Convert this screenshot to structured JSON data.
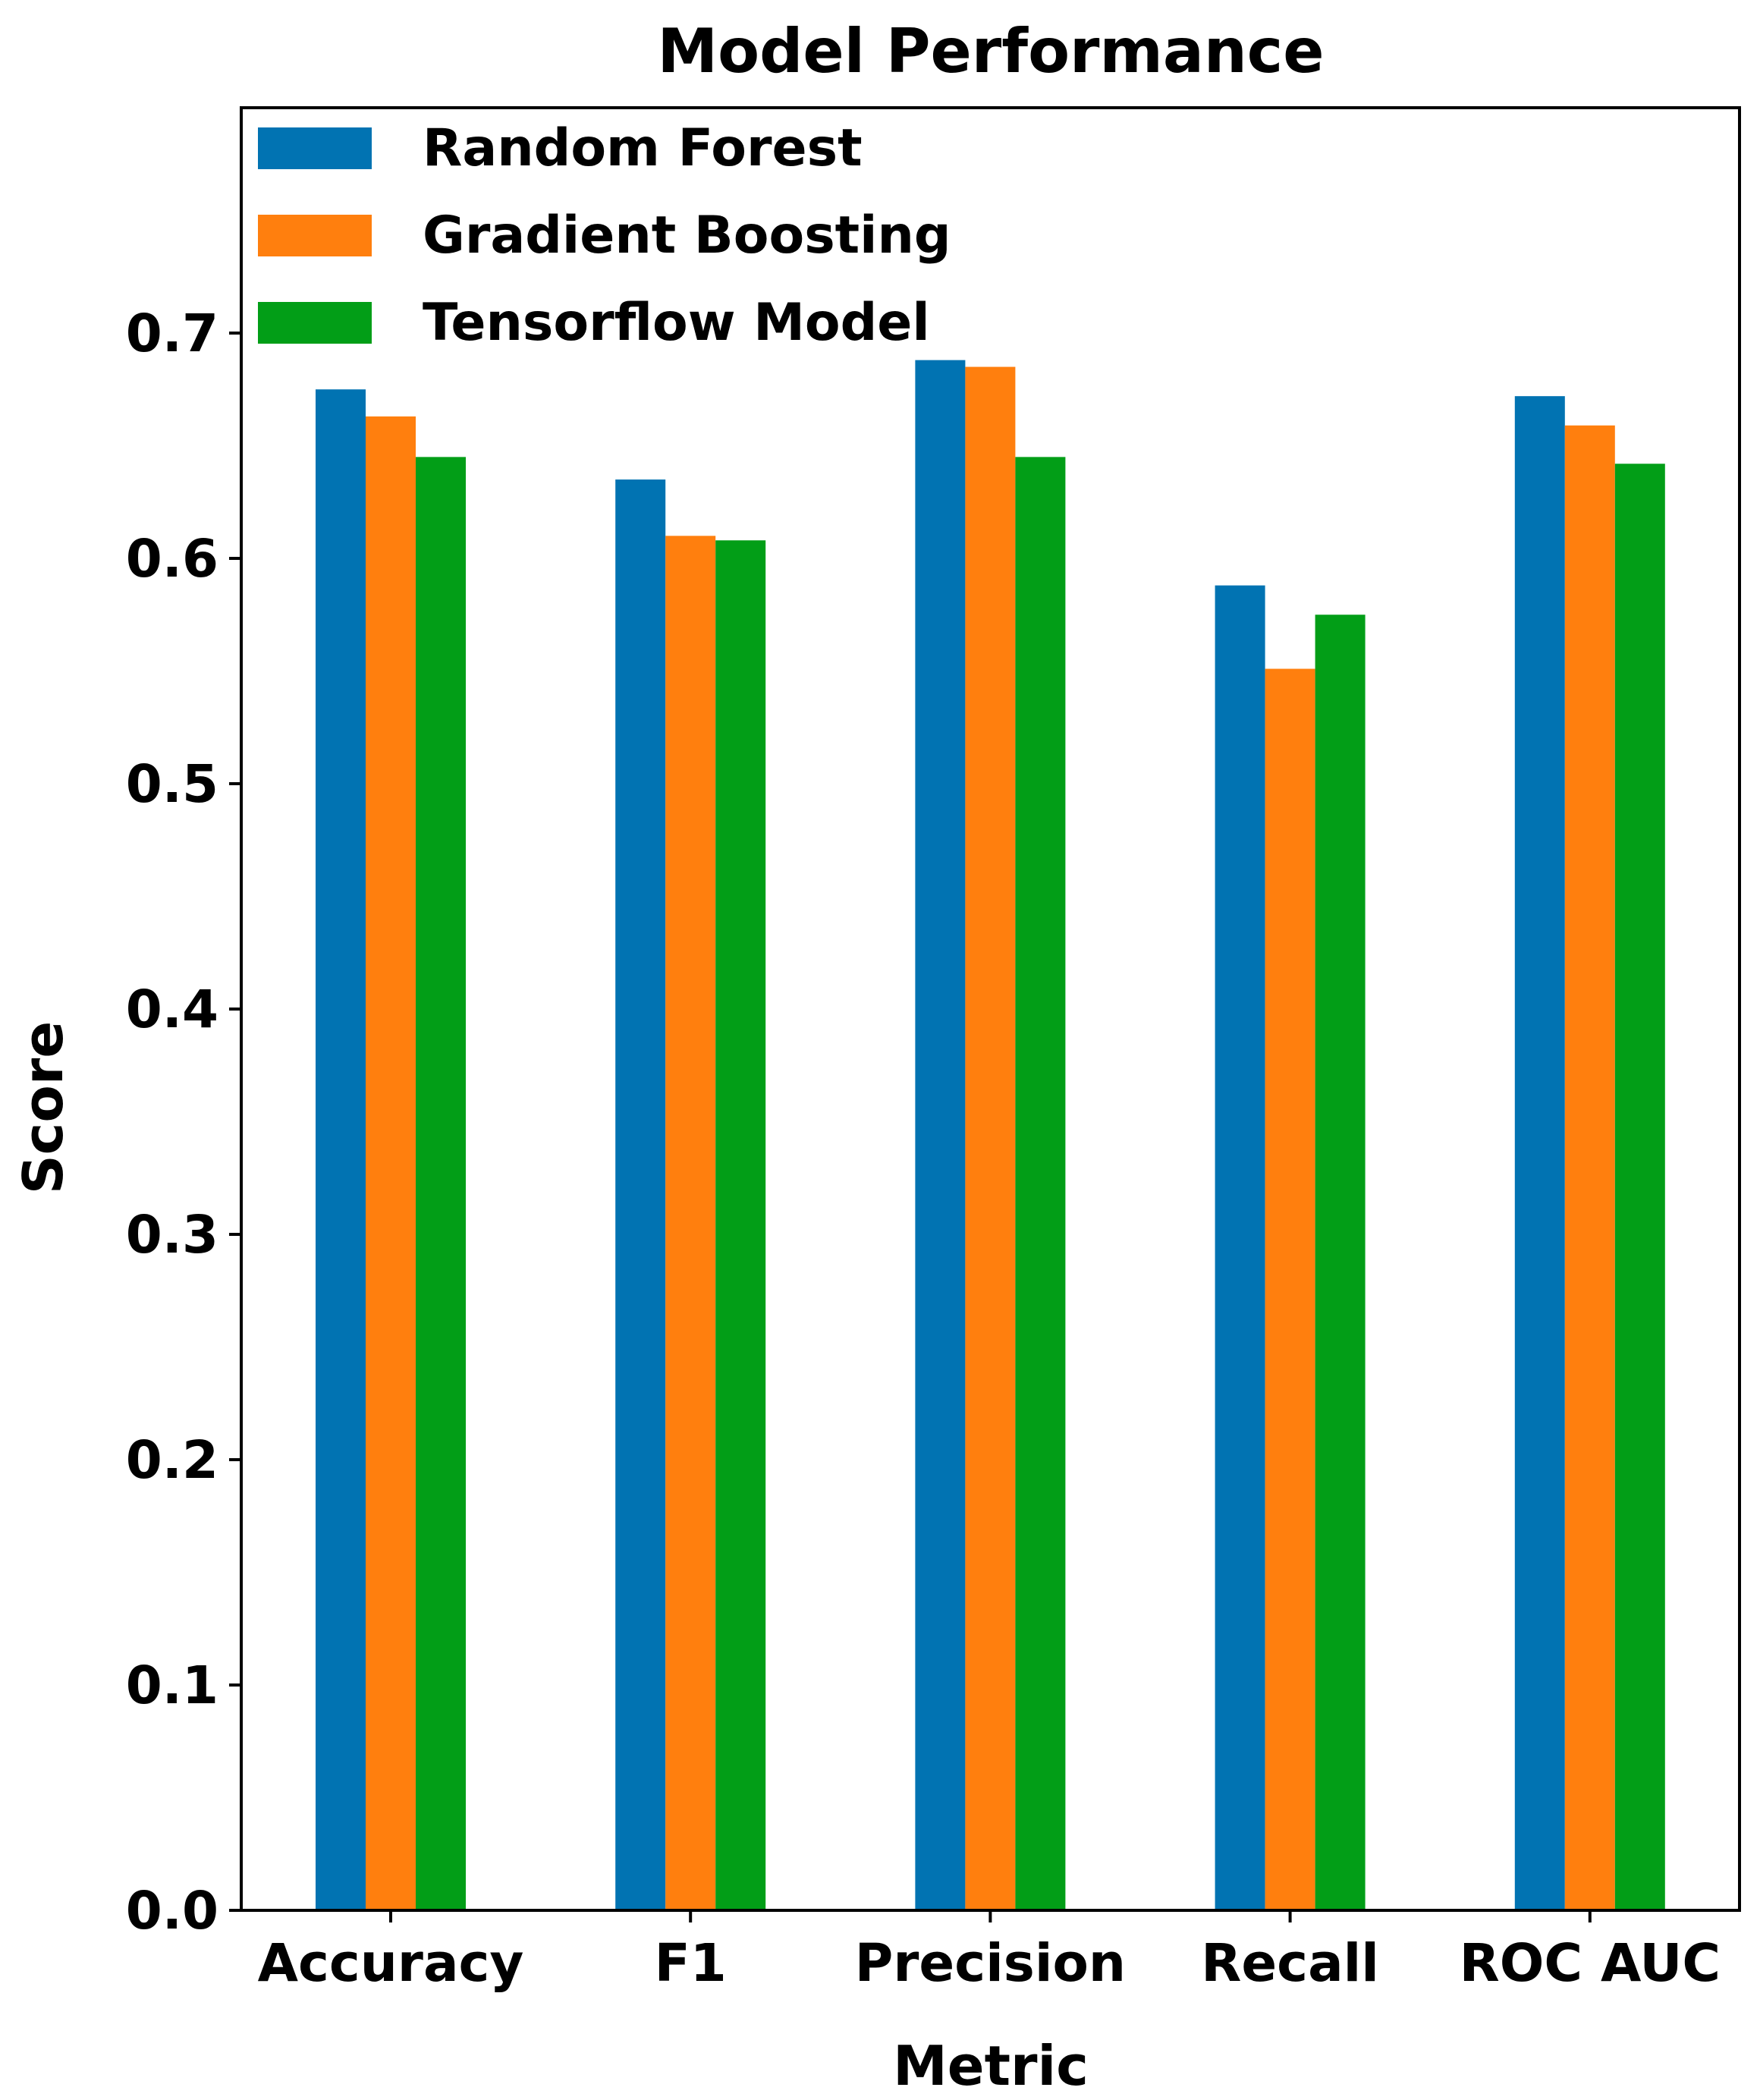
{
  "chart_data": {
    "type": "bar",
    "title": "Model Performance",
    "xlabel": "Metric",
    "ylabel": "Score",
    "ylim": [
      0,
      0.8
    ],
    "yticks": [
      "0.0",
      "0.1",
      "0.2",
      "0.3",
      "0.4",
      "0.5",
      "0.6",
      "0.7"
    ],
    "ytick_values": [
      0.0,
      0.1,
      0.2,
      0.3,
      0.4,
      0.5,
      0.6,
      0.7
    ],
    "grid": false,
    "legend_position": "top-left",
    "categories": [
      "Accuracy",
      "F1",
      "Precision",
      "Recall",
      "ROC AUC"
    ],
    "series": [
      {
        "name": "Random Forest",
        "color": "#0173b2",
        "values": [
          0.675,
          0.635,
          0.688,
          0.588,
          0.672
        ]
      },
      {
        "name": "Gradient Boosting",
        "color": "#ff7f0e",
        "values": [
          0.663,
          0.61,
          0.685,
          0.551,
          0.659
        ]
      },
      {
        "name": "Tensorflow Model",
        "color": "#029e17",
        "values": [
          0.645,
          0.608,
          0.645,
          0.575,
          0.642
        ]
      }
    ]
  }
}
